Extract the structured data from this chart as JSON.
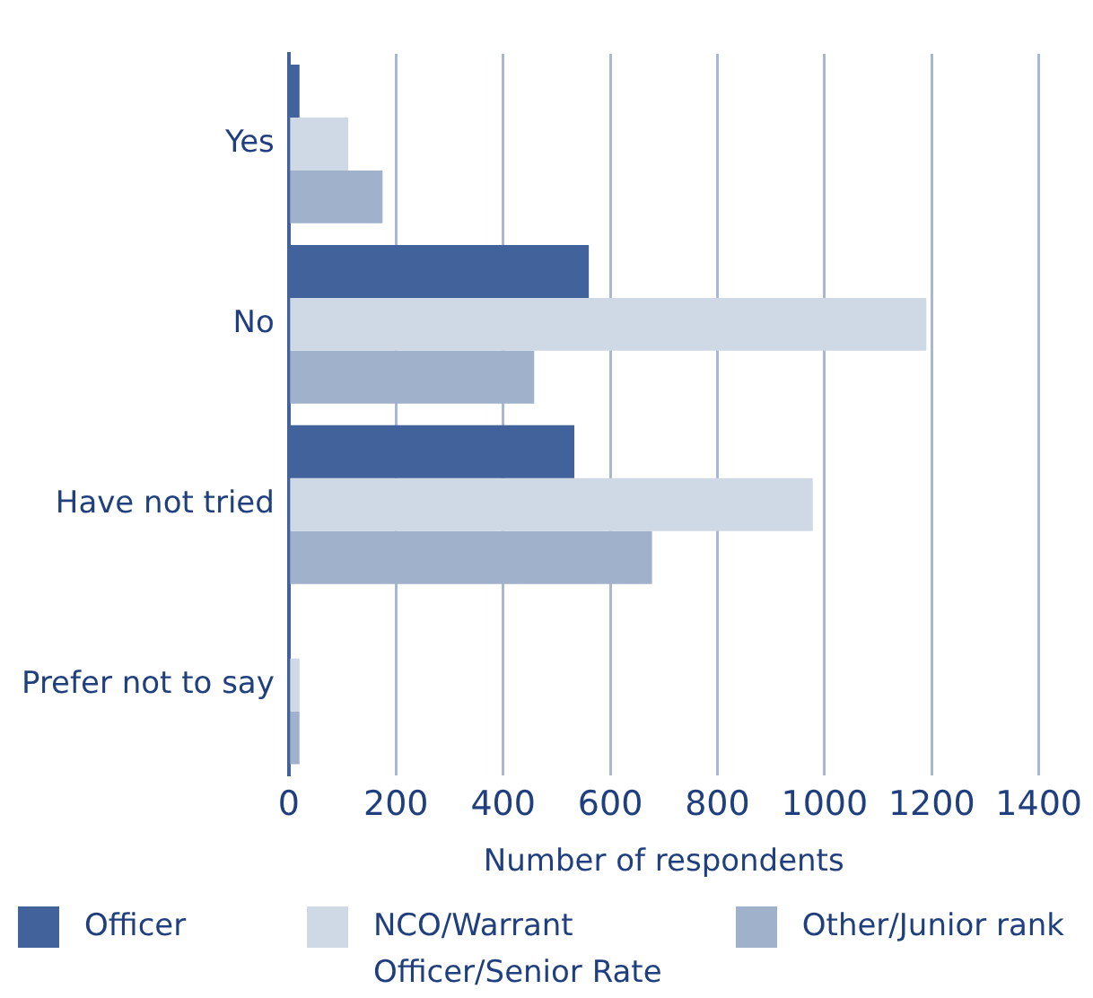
{
  "chart_data": {
    "type": "bar",
    "orientation": "horizontal",
    "xlabel": "Number of respondents",
    "categories": [
      "Yes",
      "No",
      "Have not tried",
      "Prefer not to say"
    ],
    "series": [
      {
        "name": "Officer",
        "color": "#41629a",
        "values": [
          20,
          560,
          533,
          0
        ]
      },
      {
        "name": "NCO/Warrant Officer/Senior Rate",
        "color": "#cfd9e5",
        "values": [
          111,
          1190,
          978,
          20
        ]
      },
      {
        "name": "Other/Junior rank",
        "color": "#a0b1cb",
        "values": [
          175,
          458,
          678,
          20
        ]
      }
    ],
    "xlim": [
      0,
      1400
    ],
    "xticks": [
      0,
      200,
      400,
      600,
      800,
      1000,
      1200,
      1400
    ],
    "grid": "x",
    "legend": "bottom"
  }
}
